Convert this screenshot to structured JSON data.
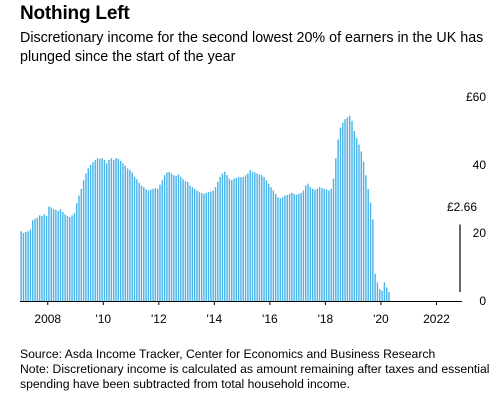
{
  "title": "Nothing Left",
  "subtitle": "Discretionary income for the second lowest 20% of earners in the UK has plunged since the start of the year",
  "source": "Source: Asda Income Tracker, Center for Economics and Business Research",
  "note": "Note: Discretionary income is calculated as amount remaining after taxes and essential spending have been subtracted from total household income.",
  "chart_data": {
    "type": "bar",
    "title": "Nothing Left",
    "x_ticks": [
      {
        "label": "2008",
        "value": 2008
      },
      {
        "label": "'10",
        "value": 2010
      },
      {
        "label": "'12",
        "value": 2012
      },
      {
        "label": "'14",
        "value": 2014
      },
      {
        "label": "'16",
        "value": 2016
      },
      {
        "label": "'18",
        "value": 2018
      },
      {
        "label": "'20",
        "value": 2020
      },
      {
        "label": "2022",
        "value": 2022
      }
    ],
    "y_ticks": [
      {
        "label": "£60",
        "value": 60
      },
      {
        "label": "40",
        "value": 40
      },
      {
        "label": "20",
        "value": 20
      },
      {
        "label": "0",
        "value": 0
      }
    ],
    "ylim": [
      0,
      60
    ],
    "xlim": [
      2007.0,
      2022.92
    ],
    "bar_color": "#4ab3ea",
    "annotation": {
      "label": "£2.66",
      "x": 2022.5,
      "y": 2.66
    },
    "series": [
      {
        "start": "2007-01",
        "frequency": "monthly",
        "values": [
          20.5,
          20.0,
          20.3,
          20.5,
          21.0,
          23.8,
          24.2,
          24.5,
          25.2,
          25.0,
          25.5,
          25.0,
          27.8,
          27.5,
          27.0,
          26.8,
          26.5,
          27.0,
          26.2,
          25.5,
          25.0,
          24.7,
          25.2,
          25.8,
          28.8,
          31.0,
          33.0,
          35.5,
          37.5,
          39.0,
          40.0,
          40.8,
          41.5,
          42.0,
          41.8,
          42.0,
          41.5,
          40.5,
          41.5,
          42.0,
          41.5,
          42.0,
          41.8,
          41.2,
          40.5,
          39.8,
          39.0,
          38.5,
          37.8,
          36.5,
          35.8,
          34.8,
          34.0,
          33.5,
          32.8,
          32.5,
          32.8,
          33.0,
          33.2,
          33.0,
          34.2,
          35.5,
          37.0,
          37.8,
          38.0,
          37.5,
          37.0,
          36.8,
          37.2,
          36.5,
          35.8,
          35.2,
          35.0,
          34.0,
          33.5,
          33.0,
          32.5,
          32.0,
          31.8,
          31.5,
          31.8,
          32.0,
          32.2,
          32.5,
          33.5,
          35.0,
          36.5,
          37.5,
          38.0,
          37.0,
          36.0,
          35.5,
          36.0,
          36.2,
          36.5,
          36.4,
          36.5,
          37.0,
          37.5,
          38.5,
          38.0,
          37.8,
          37.5,
          37.2,
          37.0,
          36.5,
          35.5,
          34.5,
          33.5,
          32.5,
          31.5,
          30.5,
          30.2,
          30.5,
          31.0,
          31.2,
          31.5,
          31.8,
          31.5,
          31.3,
          31.5,
          31.8,
          32.5,
          34.0,
          34.5,
          33.5,
          33.0,
          32.8,
          33.0,
          33.5,
          33.2,
          33.0,
          32.8,
          32.5,
          33.0,
          36.0,
          42.0,
          47.5,
          51.0,
          52.5,
          53.5,
          54.0,
          54.5,
          53.0,
          50.0,
          48.0,
          46.0,
          44.0,
          41.0,
          37.0,
          33.0,
          29.0,
          24.0,
          8.0,
          5.5,
          3.5,
          3.0,
          5.5,
          4.0,
          2.66
        ]
      }
    ]
  }
}
